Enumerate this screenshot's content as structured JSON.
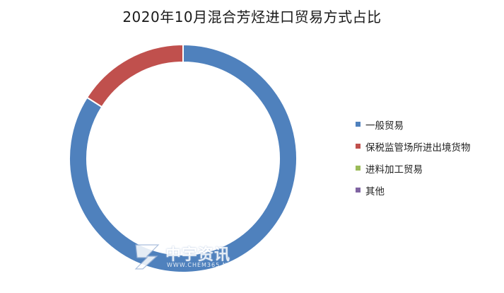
{
  "chart_data": {
    "type": "pie",
    "title": "2020年10月混合芳烃进口贸易方式占比",
    "categories": [
      "一般贸易",
      "保税监管场所进出境货物",
      "进料加工贸易",
      "其他"
    ],
    "values": [
      84,
      16,
      0,
      0
    ],
    "colors": [
      "#4f81bd",
      "#c0504d",
      "#9bbb59",
      "#8064a2"
    ],
    "legend_position": "right",
    "donut": true
  },
  "watermark": {
    "brand": "中宇资讯",
    "url": "WWW.CHEM365.NET",
    "logo_icon": "zy-logo-icon"
  }
}
